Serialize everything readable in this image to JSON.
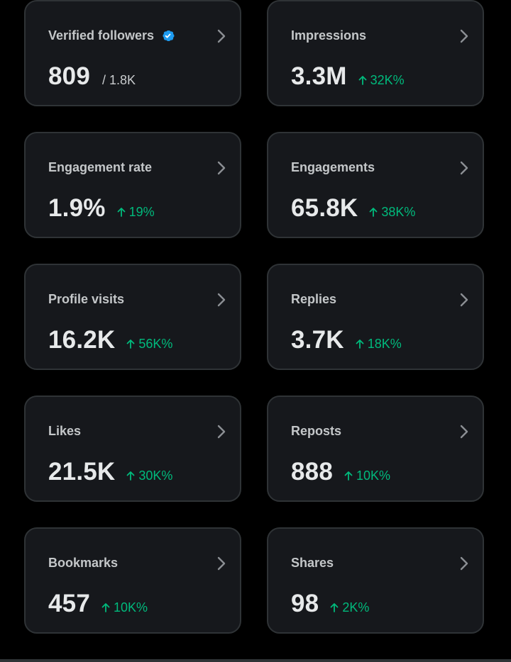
{
  "cards": [
    {
      "title": "Verified followers",
      "value": "809",
      "sub": "/ 1.8K",
      "verified": true
    },
    {
      "title": "Impressions",
      "value": "3.3M",
      "change": "32K%"
    },
    {
      "title": "Engagement rate",
      "value": "1.9%",
      "change": "19%"
    },
    {
      "title": "Engagements",
      "value": "65.8K",
      "change": "38K%"
    },
    {
      "title": "Profile visits",
      "value": "16.2K",
      "change": "56K%"
    },
    {
      "title": "Replies",
      "value": "3.7K",
      "change": "18K%"
    },
    {
      "title": "Likes",
      "value": "21.5K",
      "change": "30K%"
    },
    {
      "title": "Reposts",
      "value": "888",
      "change": "10K%"
    },
    {
      "title": "Bookmarks",
      "value": "457",
      "change": "10K%"
    },
    {
      "title": "Shares",
      "value": "98",
      "change": "2K%"
    }
  ],
  "colors": {
    "background": "#000000",
    "card": "#16181c",
    "border": "#2f3336",
    "positive": "#00ba7c",
    "verified": "#1d9bf0"
  },
  "icons": {
    "verified": "verified-badge-icon",
    "chevron": "chevron-right-icon",
    "trend": "arrow-up-icon"
  }
}
